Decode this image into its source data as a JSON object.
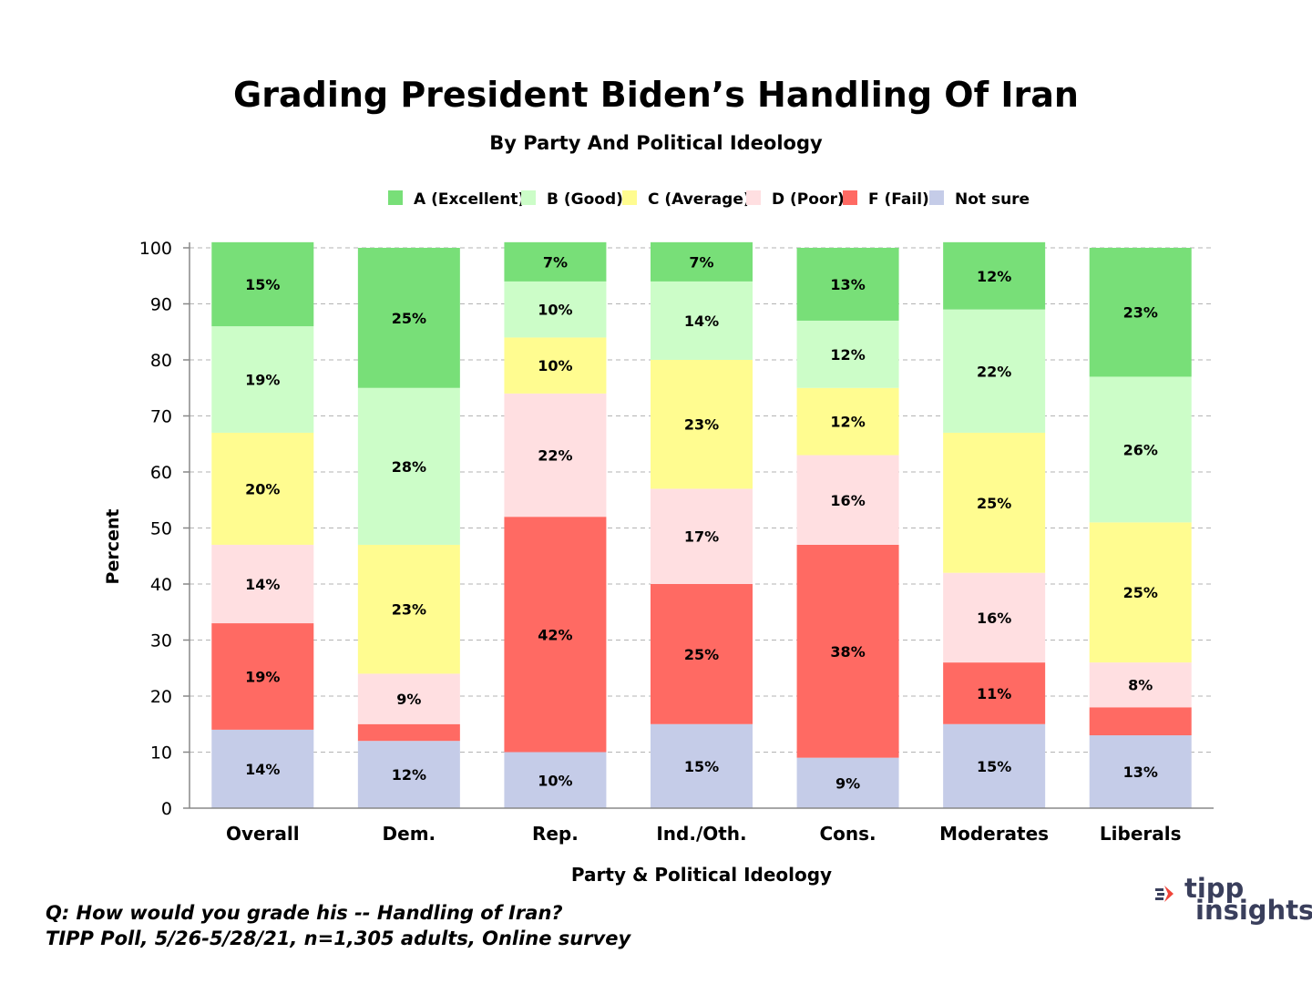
{
  "chart_data": {
    "type": "bar",
    "stacked": true,
    "title": "Grading President Biden’s Handling Of Iran",
    "subtitle": "By Party And Political Ideology",
    "xlabel": "Party & Political Ideology",
    "ylabel": "Percent",
    "ylim": [
      0,
      100
    ],
    "yticks": [
      "0",
      "10",
      "20",
      "30",
      "40",
      "50",
      "60",
      "70",
      "80",
      "90",
      "100"
    ],
    "grid": true,
    "legend_position": "top",
    "categories": [
      "Overall",
      "Dem.",
      "Rep.",
      "Ind./Oth.",
      "Cons.",
      "Moderates",
      "Liberals"
    ],
    "series": [
      {
        "name": "Not sure",
        "color": "#c5cce8",
        "values": [
          14,
          12,
          10,
          15,
          9,
          15,
          13
        ],
        "labels": [
          "14%",
          "12%",
          "10%",
          "15%",
          "9%",
          "15%",
          "13%"
        ]
      },
      {
        "name": "F (Fail)",
        "color": "#ff6a63",
        "values": [
          19,
          3,
          42,
          25,
          38,
          11,
          5
        ],
        "labels": [
          "19%",
          "",
          "42%",
          "25%",
          "38%",
          "11%",
          ""
        ]
      },
      {
        "name": "D (Poor)",
        "color": "#ffdfe1",
        "values": [
          14,
          9,
          22,
          17,
          16,
          16,
          8
        ],
        "labels": [
          "14%",
          "9%",
          "22%",
          "17%",
          "16%",
          "16%",
          "8%"
        ]
      },
      {
        "name": "C (Average)",
        "color": "#fffc90",
        "values": [
          20,
          23,
          10,
          23,
          12,
          25,
          25
        ],
        "labels": [
          "20%",
          "23%",
          "10%",
          "23%",
          "12%",
          "25%",
          "25%"
        ]
      },
      {
        "name": "B (Good)",
        "color": "#ccfdc8",
        "values": [
          19,
          28,
          10,
          14,
          12,
          22,
          26
        ],
        "labels": [
          "19%",
          "28%",
          "10%",
          "14%",
          "12%",
          "22%",
          "26%"
        ]
      },
      {
        "name": "A (Excellent)",
        "color": "#78df78",
        "values": [
          15,
          25,
          7,
          7,
          13,
          12,
          23
        ],
        "labels": [
          "15%",
          "25%",
          "7%",
          "7%",
          "13%",
          "12%",
          "23%"
        ]
      }
    ],
    "legend_order": [
      "A (Excellent)",
      "B (Good)",
      "C (Average)",
      "D (Poor)",
      "F (Fail)",
      "Not sure"
    ]
  },
  "footnote": {
    "question": "Q:  How would you grade his -- Handling of Iran?",
    "source": "TIPP Poll, 5/26-5/28/21, n=1,305 adults, Online survey"
  },
  "logo": {
    "word1": "tipp",
    "word2": "insights",
    "color": "#3a3f5c",
    "accent": "#f0453a"
  }
}
